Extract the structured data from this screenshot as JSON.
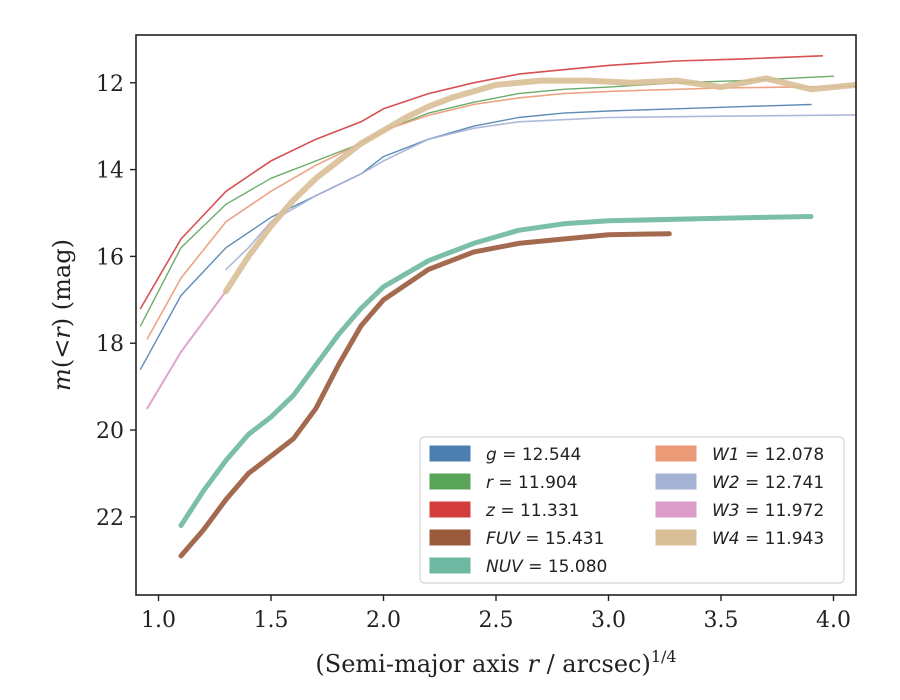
{
  "chart_data": {
    "type": "line",
    "xlabel": "(Semi-major axis r / arcsec)^1/4",
    "xlabel_parts": {
      "prefix": "(Semi-major axis ",
      "var": "r",
      "mid": " / arcsec)",
      "sup": "1/4"
    },
    "ylabel": "m(<r) (mag)",
    "ylabel_parts": {
      "var": "m",
      "mid": "(<",
      "var2": "r",
      "suffix": ") (mag)"
    },
    "xlim": [
      0.9,
      4.1
    ],
    "ylim": [
      23.8,
      10.9
    ],
    "y_inverted": true,
    "xticks": [
      "1.0",
      "1.5",
      "2.0",
      "2.5",
      "3.0",
      "3.5",
      "4.0"
    ],
    "xtick_values": [
      1.0,
      1.5,
      2.0,
      2.5,
      3.0,
      3.5,
      4.0
    ],
    "yticks": [
      "12",
      "14",
      "16",
      "18",
      "20",
      "22"
    ],
    "ytick_values": [
      12,
      14,
      16,
      18,
      20,
      22
    ],
    "grid": false,
    "legend_position": "lower-right",
    "series": [
      {
        "name": "g = 12.544",
        "band": "g",
        "value": "12.544",
        "color": "#4c7fb0",
        "width": 1.4,
        "x": [
          0.92,
          1.1,
          1.3,
          1.5,
          1.7,
          1.9,
          2.0,
          2.2,
          2.4,
          2.6,
          2.8,
          3.0,
          3.3,
          3.6,
          3.9
        ],
        "y": [
          18.6,
          16.9,
          15.8,
          15.1,
          14.6,
          14.1,
          13.7,
          13.3,
          13.0,
          12.8,
          12.7,
          12.65,
          12.6,
          12.55,
          12.5
        ]
      },
      {
        "name": "r = 11.904",
        "band": "r",
        "value": "11.904",
        "color": "#5aa45a",
        "width": 1.4,
        "x": [
          0.92,
          1.1,
          1.3,
          1.5,
          1.7,
          1.9,
          2.0,
          2.2,
          2.4,
          2.6,
          2.8,
          3.0,
          3.3,
          3.6,
          4.0
        ],
        "y": [
          17.6,
          15.8,
          14.8,
          14.2,
          13.8,
          13.4,
          13.1,
          12.7,
          12.45,
          12.25,
          12.15,
          12.1,
          12.0,
          11.95,
          11.85
        ]
      },
      {
        "name": "z = 11.331",
        "band": "z",
        "value": "11.331",
        "color": "#d43d3d",
        "width": 1.6,
        "x": [
          0.92,
          1.1,
          1.3,
          1.5,
          1.7,
          1.9,
          2.0,
          2.2,
          2.4,
          2.6,
          2.8,
          3.0,
          3.3,
          3.6,
          3.95
        ],
        "y": [
          17.2,
          15.6,
          14.5,
          13.8,
          13.3,
          12.9,
          12.6,
          12.25,
          12.0,
          11.8,
          11.7,
          11.6,
          11.5,
          11.45,
          11.38
        ]
      },
      {
        "name": "FUV = 15.431",
        "band": "FUV",
        "value": "15.431",
        "color": "#9a5a3c",
        "width": 5.0,
        "x": [
          1.1,
          1.2,
          1.3,
          1.4,
          1.5,
          1.6,
          1.7,
          1.8,
          1.9,
          2.0,
          2.2,
          2.4,
          2.6,
          2.8,
          3.0,
          3.27
        ],
        "y": [
          22.9,
          22.3,
          21.6,
          21.0,
          20.6,
          20.2,
          19.5,
          18.5,
          17.6,
          17.0,
          16.3,
          15.9,
          15.7,
          15.6,
          15.5,
          15.48
        ]
      },
      {
        "name": "NUV = 15.080",
        "band": "NUV",
        "value": "15.080",
        "color": "#6db8a0",
        "width": 5.0,
        "x": [
          1.1,
          1.2,
          1.3,
          1.4,
          1.5,
          1.6,
          1.7,
          1.8,
          1.9,
          2.0,
          2.2,
          2.4,
          2.6,
          2.8,
          3.0,
          3.5,
          3.9
        ],
        "y": [
          22.2,
          21.4,
          20.7,
          20.1,
          19.7,
          19.2,
          18.5,
          17.8,
          17.2,
          16.7,
          16.1,
          15.7,
          15.4,
          15.25,
          15.18,
          15.12,
          15.08
        ]
      },
      {
        "name": "W1 = 12.078",
        "band": "W1",
        "value": "12.078",
        "color": "#eb9a78",
        "width": 1.6,
        "x": [
          0.95,
          1.1,
          1.3,
          1.5,
          1.7,
          1.9,
          2.0,
          2.2,
          2.4,
          2.6,
          2.8,
          3.0,
          3.5,
          4.1
        ],
        "y": [
          17.9,
          16.5,
          15.2,
          14.5,
          13.9,
          13.4,
          13.1,
          12.75,
          12.5,
          12.35,
          12.25,
          12.2,
          12.12,
          12.08
        ]
      },
      {
        "name": "W2 = 12.741",
        "band": "W2",
        "value": "12.741",
        "color": "#a4b2d6",
        "width": 1.6,
        "x": [
          1.3,
          1.4,
          1.5,
          1.7,
          1.9,
          2.0,
          2.2,
          2.4,
          2.6,
          2.8,
          3.0,
          3.5,
          4.1
        ],
        "y": [
          16.3,
          15.8,
          15.2,
          14.6,
          14.1,
          13.8,
          13.3,
          13.05,
          12.9,
          12.85,
          12.8,
          12.77,
          12.74
        ]
      },
      {
        "name": "W3 = 11.972",
        "band": "W3",
        "value": "11.972",
        "color": "#dc9cc8",
        "width": 2.0,
        "x": [
          0.95,
          1.1,
          1.2,
          1.3
        ],
        "y": [
          19.5,
          18.2,
          17.5,
          16.8
        ]
      },
      {
        "name": "W4 = 11.943",
        "band": "W4",
        "value": "11.943",
        "color": "#d9bf98",
        "width": 6.0,
        "x": [
          1.3,
          1.4,
          1.5,
          1.6,
          1.7,
          1.8,
          1.9,
          2.0,
          2.1,
          2.2,
          2.3,
          2.4,
          2.5,
          2.7,
          2.9,
          3.1,
          3.3,
          3.5,
          3.7,
          3.9,
          4.1
        ],
        "y": [
          16.8,
          16.0,
          15.3,
          14.7,
          14.2,
          13.8,
          13.4,
          13.1,
          12.8,
          12.55,
          12.35,
          12.2,
          12.05,
          11.95,
          11.95,
          12.0,
          11.95,
          12.1,
          11.9,
          12.15,
          12.05
        ]
      }
    ]
  }
}
